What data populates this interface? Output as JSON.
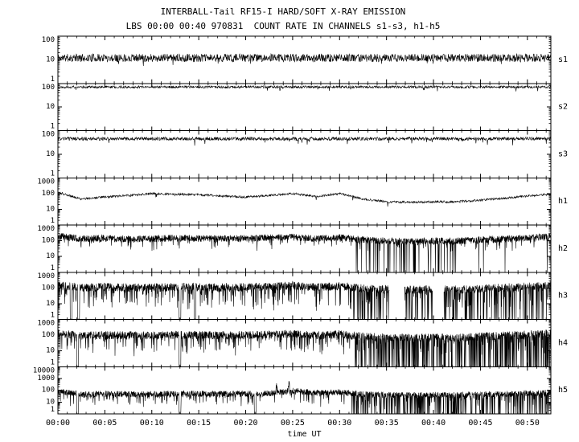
{
  "chart_data": {
    "type": "line",
    "title": "INTERBALL-Tail RF15-I HARD/SOFT X-RAY EMISSION",
    "subtitle": "LBS 00:00 00:40 970831  COUNT RATE IN CHANNELS s1-s3, h1-h5",
    "xlabel": "time UT",
    "x_start_minutes": 0,
    "x_end_minutes": 52.5,
    "x_major_tick_minutes": 5,
    "x_minor_tick_minutes": 1,
    "x_tick_labels": [
      "00:00",
      "00:05",
      "00:10",
      "00:15",
      "00:20",
      "00:25",
      "00:30",
      "00:35",
      "00:40",
      "00:45",
      "00:50"
    ],
    "axis_color": "#000000",
    "line_color": "#000000",
    "background": "#ffffff",
    "y_scale": "log",
    "panels": [
      {
        "id": "s1",
        "label": "s1",
        "ylim": [
          1,
          100
        ],
        "yticks": [
          1,
          10,
          100
        ],
        "baseline": 12,
        "noise_dex": 0.17,
        "tail_prob": 0.02,
        "tail_dex": 0.3,
        "points": 1500,
        "seed": 11,
        "down_spikes": [],
        "dropout_windows": [],
        "gap_windows": [],
        "up_spikes": []
      },
      {
        "id": "s2",
        "label": "s2",
        "ylim": [
          1,
          100
        ],
        "yticks": [
          1,
          10,
          100
        ],
        "baseline": 70,
        "noise_dex": 0.05,
        "tail_prob": 0.015,
        "tail_dex": 0.2,
        "points": 1500,
        "seed": 22,
        "down_spikes": [],
        "dropout_windows": [],
        "gap_windows": [],
        "up_spikes": []
      },
      {
        "id": "s3",
        "label": "s3",
        "ylim": [
          1,
          100
        ],
        "yticks": [
          1,
          10,
          100
        ],
        "baseline": 45,
        "noise_dex": 0.07,
        "tail_prob": 0.02,
        "tail_dex": 0.25,
        "points": 1500,
        "seed": 33,
        "down_spikes": [],
        "dropout_windows": [],
        "gap_windows": [],
        "up_spikes": []
      },
      {
        "id": "h1",
        "label": "h1",
        "ylim": [
          1,
          1000
        ],
        "yticks": [
          1,
          10,
          100,
          1000
        ],
        "baseline": [
          120,
          45,
          60,
          75,
          100,
          90,
          85,
          70,
          60,
          75,
          100,
          65,
          100,
          45,
          30,
          28,
          30,
          30,
          38,
          50,
          70,
          90
        ],
        "noise_dex": 0.07,
        "tail_prob": 0.01,
        "tail_dex": 0.3,
        "points": 1400,
        "seed": 44,
        "down_spikes": [],
        "dropout_windows": [],
        "gap_windows": [],
        "up_spikes": []
      },
      {
        "id": "h2",
        "label": "h2",
        "ylim": [
          1,
          1000
        ],
        "yticks": [
          1,
          10,
          100,
          1000
        ],
        "baseline": [
          200,
          130,
          145,
          130,
          130,
          150,
          140,
          135,
          145,
          150,
          170,
          135,
          160,
          115,
          100,
          90,
          100,
          95,
          115,
          130,
          155,
          185
        ],
        "noise_dex": 0.22,
        "tail_prob": 0.06,
        "tail_dex": 0.6,
        "points": 2400,
        "seed": 55,
        "down_spikes": [],
        "dropout_windows": [
          {
            "t0": 31.5,
            "t1": 33.0,
            "prob": 0.03
          },
          {
            "t0": 33.0,
            "t1": 42.3,
            "prob": 0.1
          },
          {
            "t0": 42.3,
            "t1": 52.5,
            "prob": 0.012
          }
        ],
        "gap_windows": [],
        "up_spikes": []
      },
      {
        "id": "h3",
        "label": "h3",
        "ylim": [
          1,
          1000
        ],
        "yticks": [
          1,
          10,
          100,
          1000
        ],
        "baseline": [
          160,
          105,
          115,
          105,
          105,
          120,
          110,
          108,
          115,
          120,
          140,
          110,
          130,
          92,
          80,
          75,
          80,
          78,
          92,
          105,
          125,
          148
        ],
        "noise_dex": 0.26,
        "tail_prob": 0.16,
        "tail_dex": 1.3,
        "points": 2400,
        "seed": 66,
        "down_spikes": [
          1.4,
          2.2,
          13.0,
          14.6
        ],
        "dropout_windows": [
          {
            "t0": 31.3,
            "t1": 52.5,
            "prob": 0.14
          }
        ],
        "gap_windows": [
          {
            "t0": 35.3,
            "t1": 36.9
          },
          {
            "t0": 39.9,
            "t1": 41.1
          }
        ],
        "up_spikes": []
      },
      {
        "id": "h4",
        "label": "h4",
        "ylim": [
          1,
          1000
        ],
        "yticks": [
          1,
          10,
          100,
          1000
        ],
        "baseline": [
          140,
          90,
          100,
          95,
          95,
          105,
          100,
          95,
          100,
          110,
          125,
          95,
          115,
          82,
          70,
          68,
          70,
          70,
          82,
          95,
          110,
          130
        ],
        "noise_dex": 0.26,
        "tail_prob": 0.14,
        "tail_dex": 1.1,
        "points": 2400,
        "seed": 77,
        "down_spikes": [
          2.1,
          13.0
        ],
        "dropout_windows": [
          {
            "t0": 31.3,
            "t1": 52.5,
            "prob": 0.22
          }
        ],
        "gap_windows": [],
        "up_spikes": []
      },
      {
        "id": "h5",
        "label": "h5",
        "ylim": [
          1,
          10000
        ],
        "yticks": [
          1,
          10,
          100,
          1000,
          10000
        ],
        "baseline": [
          80,
          45,
          50,
          48,
          46,
          52,
          50,
          48,
          50,
          55,
          90,
          60,
          70,
          45,
          40,
          38,
          40,
          40,
          45,
          50,
          55,
          60
        ],
        "noise_dex": 0.26,
        "tail_prob": 0.1,
        "tail_dex": 1.0,
        "points": 2400,
        "seed": 88,
        "down_spikes": [
          2.1,
          13.0,
          21.0
        ],
        "dropout_windows": [
          {
            "t0": 31.3,
            "t1": 52.5,
            "prob": 0.18
          }
        ],
        "gap_windows": [],
        "up_spikes": [
          {
            "t": 21.0,
            "mult": 5
          },
          {
            "t": 23.3,
            "mult": 3.5
          },
          {
            "t": 24.6,
            "mult": 4
          }
        ]
      }
    ]
  }
}
